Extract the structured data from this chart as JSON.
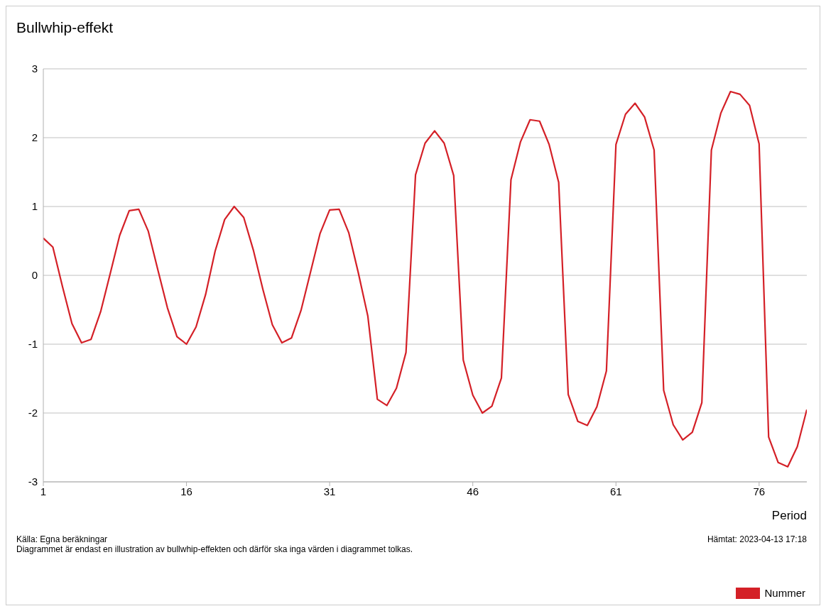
{
  "chart_data": {
    "type": "line",
    "title": "Bullwhip-effekt",
    "xlabel": "Period",
    "x": [
      1,
      2,
      3,
      4,
      5,
      6,
      7,
      8,
      9,
      10,
      11,
      12,
      13,
      14,
      15,
      16,
      17,
      18,
      19,
      20,
      21,
      22,
      23,
      24,
      25,
      26,
      27,
      28,
      29,
      30,
      31,
      32,
      33,
      34,
      35,
      36,
      37,
      38,
      39,
      40,
      41,
      42,
      43,
      44,
      45,
      46,
      47,
      48,
      49,
      50,
      51,
      52,
      53,
      54,
      55,
      56,
      57,
      58,
      59,
      60,
      61,
      62,
      63,
      64,
      65,
      66,
      67,
      68,
      69,
      70,
      71,
      72,
      73,
      74,
      75,
      76,
      77,
      78,
      79,
      80,
      81
    ],
    "series": [
      {
        "name": "Nummer",
        "color": "#d42027",
        "values": [
          0.54,
          0.41,
          -0.16,
          -0.7,
          -0.98,
          -0.93,
          -0.53,
          0.02,
          0.58,
          0.94,
          0.96,
          0.64,
          0.08,
          -0.47,
          -0.89,
          -1.0,
          -0.75,
          -0.28,
          0.35,
          0.81,
          1.0,
          0.84,
          0.37,
          -0.2,
          -0.72,
          -0.98,
          -0.91,
          -0.51,
          0.05,
          0.61,
          0.95,
          0.96,
          0.62,
          0.04,
          -0.59,
          -1.8,
          -1.89,
          -1.64,
          -1.12,
          1.46,
          1.92,
          2.1,
          1.92,
          1.45,
          -1.23,
          -1.74,
          -2.0,
          -1.9,
          -1.49,
          1.39,
          1.94,
          2.26,
          2.24,
          1.9,
          1.35,
          -1.73,
          -2.12,
          -2.18,
          -1.91,
          -1.39,
          1.9,
          2.34,
          2.5,
          2.3,
          1.82,
          -1.67,
          -2.17,
          -2.39,
          -2.28,
          -1.85,
          1.82,
          2.36,
          2.67,
          2.63,
          2.47,
          1.91,
          -2.35,
          -2.72,
          -2.78,
          -2.49,
          -1.95
        ]
      }
    ],
    "xlim": [
      1,
      81
    ],
    "xticks": [
      1,
      16,
      31,
      46,
      61,
      76
    ],
    "ylim": [
      -3,
      3
    ],
    "yticks": [
      -3,
      -2,
      -1,
      0,
      1,
      2,
      3
    ],
    "grid": "y",
    "legend": "bottom right",
    "annotations": [
      "Källa: Egna beräkningar",
      "Diagrammet är endast en illustration av bullwhip-effekten och därför ska inga värden i diagrammet tolkas.",
      "Hämtat: 2023-04-13 17:18"
    ]
  }
}
